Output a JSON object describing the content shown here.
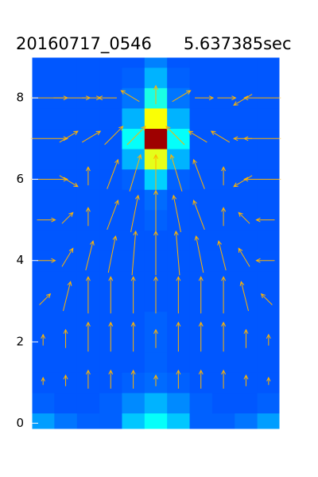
{
  "chart_data": {
    "type": "contour",
    "title": "20160717_0546      5.637385sec",
    "ylim": [
      -0.15,
      9
    ],
    "yticks": [
      0,
      2,
      4,
      6,
      8
    ],
    "colormap": "jet",
    "y": [
      0,
      0.5,
      1,
      1.5,
      2,
      2.5,
      3,
      3.5,
      4,
      4.5,
      5,
      5.5,
      6,
      6.5,
      7,
      7.5,
      8,
      8.5,
      9
    ],
    "z": [
      [
        0.28,
        0.24,
        0.22,
        0.22,
        0.32,
        0.38,
        0.32,
        0.22,
        0.22,
        0.24,
        0.28
      ],
      [
        0.22,
        0.21,
        0.21,
        0.22,
        0.26,
        0.3,
        0.26,
        0.22,
        0.21,
        0.21,
        0.22
      ],
      [
        0.21,
        0.21,
        0.21,
        0.21,
        0.22,
        0.23,
        0.22,
        0.21,
        0.21,
        0.21,
        0.21
      ],
      [
        0.21,
        0.21,
        0.21,
        0.21,
        0.21,
        0.22,
        0.21,
        0.21,
        0.21,
        0.21,
        0.21
      ],
      [
        0.21,
        0.21,
        0.21,
        0.21,
        0.21,
        0.22,
        0.21,
        0.21,
        0.21,
        0.21,
        0.21
      ],
      [
        0.21,
        0.21,
        0.21,
        0.21,
        0.21,
        0.22,
        0.21,
        0.21,
        0.21,
        0.21,
        0.21
      ],
      [
        0.21,
        0.21,
        0.21,
        0.21,
        0.21,
        0.21,
        0.21,
        0.21,
        0.21,
        0.21,
        0.21
      ],
      [
        0.21,
        0.21,
        0.21,
        0.21,
        0.21,
        0.21,
        0.21,
        0.21,
        0.21,
        0.21,
        0.21
      ],
      [
        0.21,
        0.21,
        0.21,
        0.21,
        0.21,
        0.21,
        0.21,
        0.21,
        0.21,
        0.21,
        0.21
      ],
      [
        0.21,
        0.21,
        0.21,
        0.21,
        0.21,
        0.21,
        0.21,
        0.21,
        0.21,
        0.21,
        0.21
      ],
      [
        0.21,
        0.21,
        0.21,
        0.21,
        0.21,
        0.22,
        0.21,
        0.21,
        0.21,
        0.21,
        0.21
      ],
      [
        0.21,
        0.21,
        0.21,
        0.21,
        0.21,
        0.23,
        0.21,
        0.21,
        0.21,
        0.21,
        0.21
      ],
      [
        0.21,
        0.21,
        0.21,
        0.21,
        0.22,
        0.33,
        0.22,
        0.21,
        0.21,
        0.21,
        0.21
      ],
      [
        0.21,
        0.21,
        0.21,
        0.21,
        0.3,
        0.6,
        0.3,
        0.21,
        0.21,
        0.21,
        0.21
      ],
      [
        0.21,
        0.21,
        0.21,
        0.21,
        0.38,
        0.97,
        0.38,
        0.21,
        0.21,
        0.21,
        0.21
      ],
      [
        0.21,
        0.21,
        0.21,
        0.21,
        0.3,
        0.62,
        0.3,
        0.21,
        0.21,
        0.21,
        0.21
      ],
      [
        0.21,
        0.21,
        0.21,
        0.21,
        0.24,
        0.4,
        0.24,
        0.21,
        0.21,
        0.21,
        0.21
      ],
      [
        0.21,
        0.21,
        0.21,
        0.21,
        0.22,
        0.3,
        0.22,
        0.21,
        0.21,
        0.21,
        0.21
      ],
      [
        0.21,
        0.21,
        0.21,
        0.21,
        0.21,
        0.25,
        0.21,
        0.21,
        0.21,
        0.21,
        0.21
      ]
    ],
    "vectors": {
      "color": "#ffb400",
      "y": [
        1,
        2,
        3,
        4,
        5,
        6,
        7,
        8
      ],
      "u": [
        [
          0,
          0,
          0,
          0,
          0,
          0,
          0,
          0,
          0,
          0,
          0
        ],
        [
          0,
          0,
          0,
          0,
          0,
          0,
          0,
          0,
          0,
          0,
          0
        ],
        [
          0.3,
          0.2,
          0,
          0,
          0,
          0,
          0,
          0,
          0,
          -0.2,
          -0.3
        ],
        [
          0.5,
          0.3,
          0.2,
          0.2,
          0.1,
          0,
          -0.1,
          -0.2,
          -0.2,
          -0.3,
          -0.5
        ],
        [
          0.5,
          0.3,
          0,
          0.3,
          0.2,
          0,
          -0.2,
          -0.3,
          0,
          -0.3,
          -0.5
        ],
        [
          1,
          0.5,
          0,
          0.3,
          0.3,
          0,
          -0.3,
          -0.3,
          0,
          -0.5,
          -1
        ],
        [
          1,
          0.5,
          0.5,
          0.5,
          0.5,
          0,
          -0.5,
          -0.5,
          -0.5,
          -0.5,
          -1
        ],
        [
          1,
          1,
          0.5,
          -0.5,
          -0.5,
          0,
          0.5,
          0.5,
          0.5,
          -0.5,
          -1
        ]
      ],
      "v": [
        [
          0.2,
          0.3,
          0.5,
          0.5,
          0.5,
          0.3,
          0.5,
          0.5,
          0.5,
          0.3,
          0.2
        ],
        [
          0.3,
          0.5,
          0.8,
          0.8,
          0.8,
          0.5,
          0.8,
          0.8,
          0.8,
          0.5,
          0.3
        ],
        [
          0.3,
          0.8,
          1,
          1,
          1,
          1,
          1,
          1,
          1,
          0.8,
          0.3
        ],
        [
          0,
          0.5,
          0.8,
          1,
          1.2,
          1.2,
          1.2,
          1,
          0.8,
          0.5,
          0
        ],
        [
          0,
          0.3,
          0.5,
          0.8,
          1,
          1.2,
          1,
          0.8,
          0.5,
          0.3,
          0
        ],
        [
          0,
          -0.3,
          0.5,
          0.8,
          1,
          1,
          1,
          0.8,
          0.5,
          -0.3,
          0
        ],
        [
          0,
          0.3,
          0.3,
          0.5,
          0.5,
          0,
          0.5,
          0.3,
          0.3,
          0,
          0
        ],
        [
          0,
          0,
          0,
          0,
          0.3,
          0.5,
          0.3,
          0,
          0,
          -0.3,
          0
        ]
      ]
    }
  }
}
